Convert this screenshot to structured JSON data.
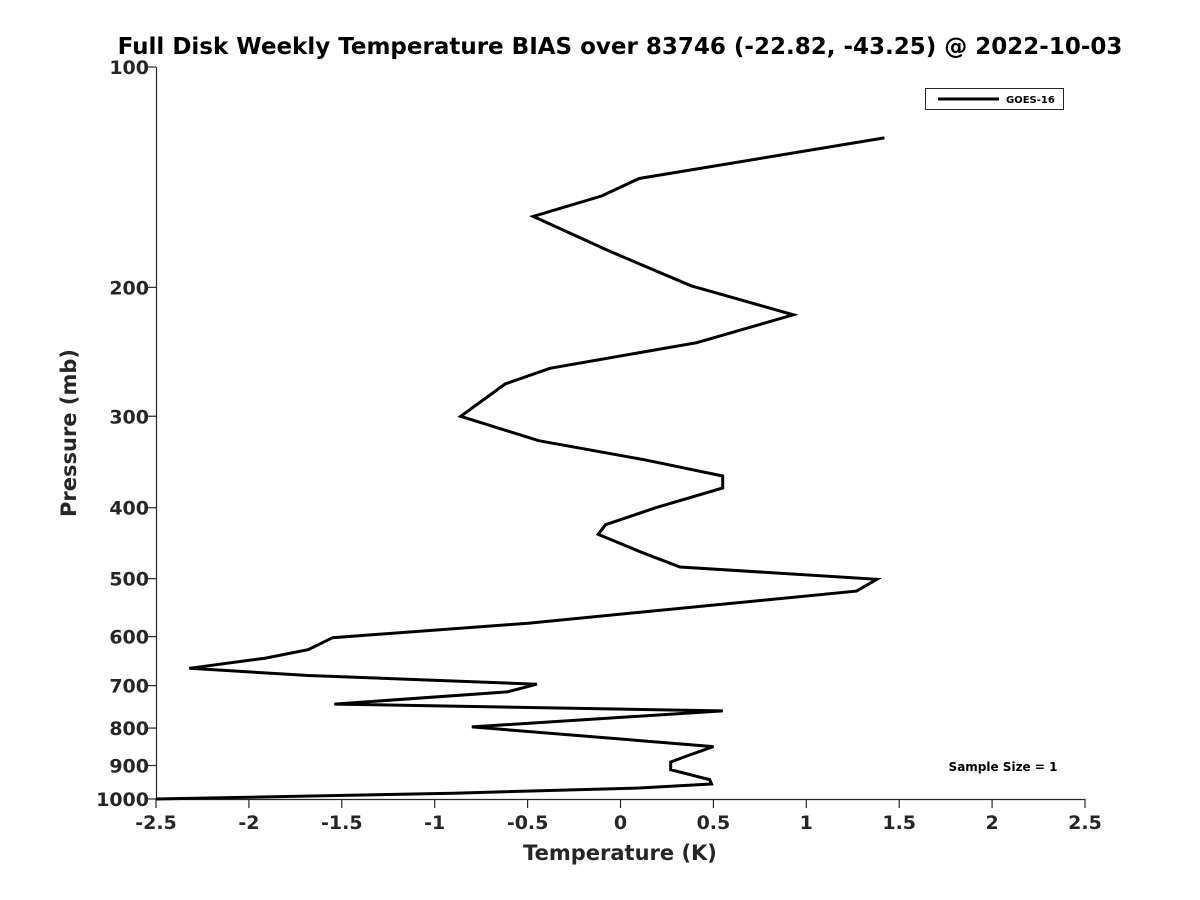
{
  "chart_data": {
    "type": "line",
    "title": "Full Disk Weekly Temperature BIAS over 83746 (-22.82, -43.25) @ 2022-10-03",
    "xlabel": "Temperature (K)",
    "ylabel": "Pressure (mb)",
    "xlim": [
      -2.5,
      2.5
    ],
    "ylim": [
      100,
      1000
    ],
    "y_scale": "log",
    "y_reversed": true,
    "xticks": [
      -2.5,
      -2,
      -1.5,
      -1,
      -0.5,
      0,
      0.5,
      1,
      1.5,
      2,
      2.5
    ],
    "xtick_labels": [
      "-2.5",
      "-2",
      "-1.5",
      "-1",
      "-0.5",
      "0",
      "0.5",
      "1",
      "1.5",
      "2",
      "2.5"
    ],
    "yticks": [
      100,
      200,
      300,
      400,
      500,
      600,
      700,
      800,
      900,
      1000
    ],
    "ytick_labels": [
      "100",
      "200",
      "300",
      "400",
      "500",
      "600",
      "700",
      "800",
      "900",
      "1000"
    ],
    "grid": false,
    "legend_position": "top-right",
    "annotation": "Sample Size = 1",
    "series": [
      {
        "name": "GOES-16",
        "color": "#000000",
        "points": [
          [
            1.42,
            125
          ],
          [
            0.1,
            142
          ],
          [
            -0.1,
            150
          ],
          [
            -0.47,
            160
          ],
          [
            -0.07,
            178
          ],
          [
            0.38,
            199
          ],
          [
            0.93,
            218
          ],
          [
            0.41,
            238
          ],
          [
            -0.38,
            258
          ],
          [
            -0.62,
            271
          ],
          [
            -0.86,
            300
          ],
          [
            -0.44,
            324
          ],
          [
            0.13,
            344
          ],
          [
            0.55,
            362
          ],
          [
            0.55,
            376
          ],
          [
            0.19,
            400
          ],
          [
            -0.08,
            422
          ],
          [
            -0.12,
            435
          ],
          [
            0.12,
            461
          ],
          [
            0.32,
            482
          ],
          [
            1.38,
            501
          ],
          [
            1.27,
            520
          ],
          [
            -0.49,
            575
          ],
          [
            -1.55,
            602
          ],
          [
            -1.68,
            625
          ],
          [
            -1.91,
            642
          ],
          [
            -2.32,
            663
          ],
          [
            -1.68,
            678
          ],
          [
            -0.45,
            697
          ],
          [
            -0.61,
            714
          ],
          [
            -1.54,
            742
          ],
          [
            0.55,
            758
          ],
          [
            -0.8,
            797
          ],
          [
            0.5,
            848
          ],
          [
            0.35,
            875
          ],
          [
            0.27,
            890
          ],
          [
            0.27,
            912
          ],
          [
            0.48,
            941
          ],
          [
            0.49,
            954
          ],
          [
            0.1,
            966
          ],
          [
            -0.9,
            982
          ],
          [
            -2.5,
            1000
          ]
        ]
      }
    ]
  }
}
